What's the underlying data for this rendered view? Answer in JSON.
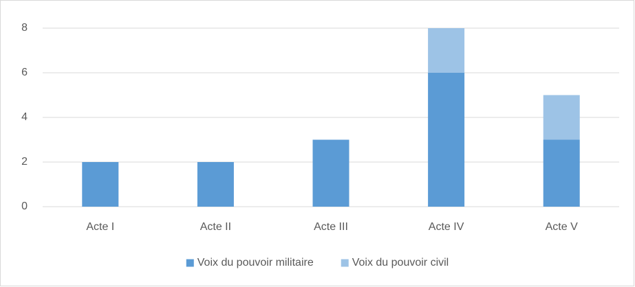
{
  "chart_data": {
    "type": "stacked_bar",
    "categories": [
      "Acte I",
      "Acte II",
      "Acte III",
      "Acte IV",
      "Acte V"
    ],
    "series": [
      {
        "name": "Voix du pouvoir militaire",
        "color": "#5b9bd5",
        "values": [
          2,
          2,
          3,
          6,
          3
        ]
      },
      {
        "name": "Voix du pouvoir civil",
        "color": "#9dc3e6",
        "values": [
          0,
          0,
          0,
          2,
          2
        ]
      }
    ],
    "ylim": [
      0,
      8
    ],
    "yticks": [
      0,
      2,
      4,
      6,
      8
    ],
    "grid": true,
    "legend": "bottom"
  }
}
